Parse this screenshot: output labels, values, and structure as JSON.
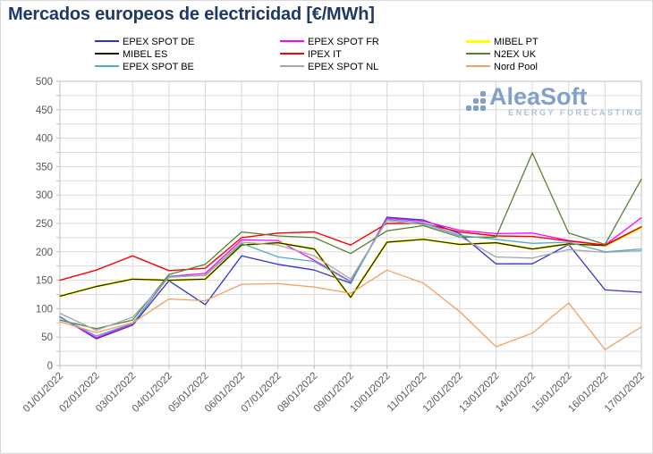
{
  "title": "Mercados europeos de electricidad [€/MWh]",
  "title_color": "#1F3864",
  "watermark": {
    "brand": "AleaSoft",
    "tagline": "ENERGY FORECASTING",
    "brand_color": "#7D9BC8",
    "tagline_color": "#A9BCD9"
  },
  "axes": {
    "y_tick_labels": [
      "500",
      "450",
      "400",
      "350",
      "300",
      "250",
      "200",
      "150",
      "100",
      "50",
      "0"
    ],
    "tick_color": "#595959",
    "grid_color": "#D9D9D9",
    "border_color": "#BFBFBF"
  },
  "chart_data": {
    "type": "line",
    "title": "Mercados europeos de electricidad [€/MWh]",
    "xlabel": "",
    "ylabel": "",
    "ylim": [
      0,
      500
    ],
    "ytick_step": 50,
    "grid_minor_step": 25,
    "grid": true,
    "legend_position": "top",
    "categories": [
      "01/01/2022",
      "02/01/2022",
      "03/01/2022",
      "04/01/2022",
      "05/01/2022",
      "06/01/2022",
      "07/01/2022",
      "08/01/2022",
      "09/01/2022",
      "10/01/2022",
      "11/01/2022",
      "12/01/2022",
      "13/01/2022",
      "14/01/2022",
      "15/01/2022",
      "16/01/2022",
      "17/01/2022"
    ],
    "series": [
      {
        "name": "EPEX SPOT DE",
        "color": "#3333CC",
        "width": 1.3,
        "values": [
          86,
          47,
          71,
          149,
          107,
          193,
          178,
          168,
          145,
          261,
          256,
          232,
          179,
          179,
          213,
          133,
          129
        ]
      },
      {
        "name": "EPEX SPOT FR",
        "color": "#FF00FF",
        "width": 1.3,
        "values": [
          85,
          49,
          73,
          157,
          162,
          221,
          220,
          185,
          148,
          259,
          254,
          238,
          232,
          233,
          220,
          212,
          260
        ]
      },
      {
        "name": "MIBEL PT",
        "color": "#FFFF00",
        "width": 2.4,
        "values": [
          122,
          139,
          152,
          150,
          152,
          212,
          216,
          205,
          120,
          217,
          222,
          213,
          216,
          205,
          214,
          211,
          243
        ]
      },
      {
        "name": "MIBEL ES",
        "color": "#1A1A00",
        "width": 1.2,
        "values": [
          122,
          139,
          152,
          150,
          152,
          212,
          216,
          205,
          120,
          217,
          222,
          213,
          216,
          205,
          214,
          211,
          244
        ]
      },
      {
        "name": "IPEX IT",
        "color": "#FF0000",
        "width": 1.4,
        "values": [
          150,
          168,
          193,
          167,
          171,
          225,
          233,
          235,
          212,
          250,
          250,
          235,
          228,
          227,
          219,
          212,
          244
        ]
      },
      {
        "name": "N2EX UK",
        "color": "#548235",
        "width": 1.3,
        "values": [
          80,
          65,
          80,
          160,
          178,
          235,
          228,
          225,
          197,
          237,
          246,
          226,
          226,
          374,
          233,
          213,
          328
        ]
      },
      {
        "name": "EPEX SPOT BE",
        "color": "#4BACC6",
        "width": 1.3,
        "values": [
          85,
          52,
          74,
          157,
          158,
          215,
          191,
          183,
          147,
          257,
          251,
          229,
          222,
          215,
          217,
          200,
          205
        ]
      },
      {
        "name": "EPEX SPOT NL",
        "color": "#A6A6A6",
        "width": 1.3,
        "values": [
          92,
          62,
          85,
          155,
          159,
          217,
          212,
          193,
          152,
          255,
          248,
          227,
          191,
          189,
          204,
          199,
          202
        ]
      },
      {
        "name": "Nord Pool",
        "color": "#F0A060",
        "width": 1.3,
        "values": [
          77,
          58,
          75,
          117,
          114,
          143,
          144,
          138,
          127,
          168,
          145,
          95,
          33,
          57,
          110,
          28,
          68
        ]
      }
    ]
  }
}
